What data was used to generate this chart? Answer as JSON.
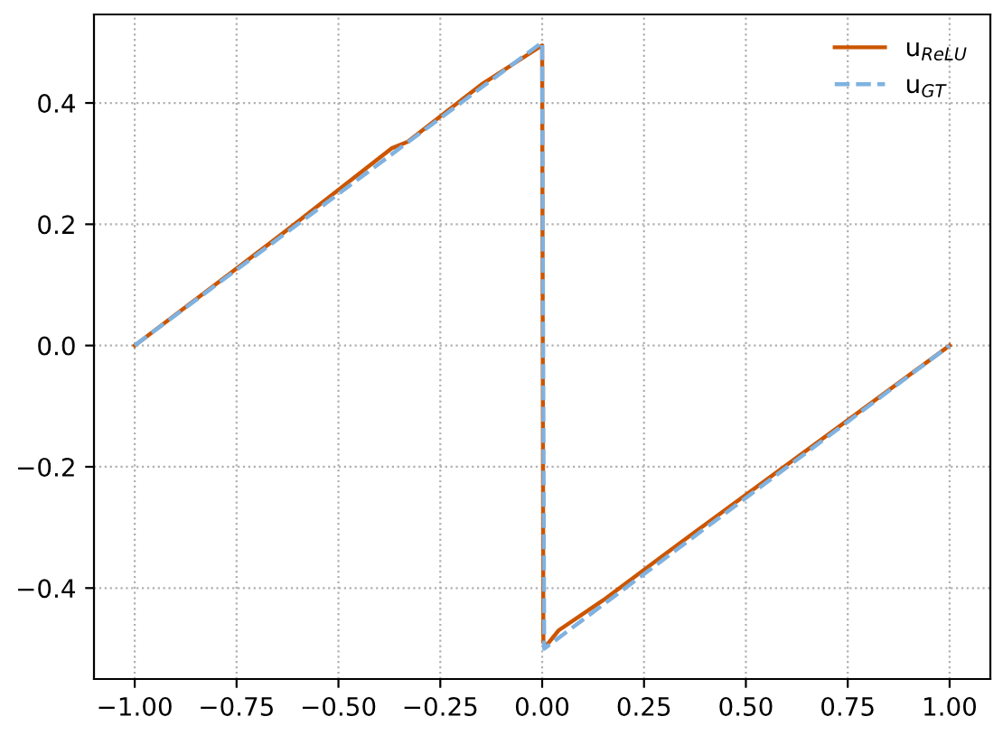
{
  "chart_data": {
    "type": "line",
    "xlim": [
      -1.1,
      1.1
    ],
    "ylim": [
      -0.55,
      0.546
    ],
    "xticks": [
      {
        "value": -1.0,
        "label": "−1.00"
      },
      {
        "value": -0.75,
        "label": "−0.75"
      },
      {
        "value": -0.5,
        "label": "−0.50"
      },
      {
        "value": -0.25,
        "label": "−0.25"
      },
      {
        "value": 0.0,
        "label": "0.00"
      },
      {
        "value": 0.25,
        "label": "0.25"
      },
      {
        "value": 0.5,
        "label": "0.50"
      },
      {
        "value": 0.75,
        "label": "0.75"
      },
      {
        "value": 1.0,
        "label": "1.00"
      }
    ],
    "yticks": [
      {
        "value": -0.4,
        "label": "−0.4"
      },
      {
        "value": -0.2,
        "label": "−0.2"
      },
      {
        "value": 0.0,
        "label": "0.0"
      },
      {
        "value": 0.2,
        "label": "0.2"
      },
      {
        "value": 0.4,
        "label": "0.4"
      }
    ],
    "grid": true,
    "legend": "top right",
    "series": [
      {
        "name": "u$_{ReLU}$",
        "color": "#cc5500",
        "line_style": "solid",
        "x": [
          -1,
          -0.65,
          -0.37,
          -0.33,
          -0.15,
          0,
          0.003,
          0.01,
          0.04,
          0.15,
          0.3,
          0.33,
          1
        ],
        "values": [
          0,
          0.178,
          0.325,
          0.336,
          0.43,
          0.495,
          -0.49,
          -0.495,
          -0.47,
          -0.42,
          -0.345,
          -0.33,
          0
        ]
      },
      {
        "name": "u$_{GT}$",
        "color": "#7fb2e0",
        "line_style": "dashed",
        "x": [
          -1,
          0,
          0.005,
          1
        ],
        "values": [
          0,
          0.5,
          -0.5,
          0
        ]
      }
    ]
  }
}
